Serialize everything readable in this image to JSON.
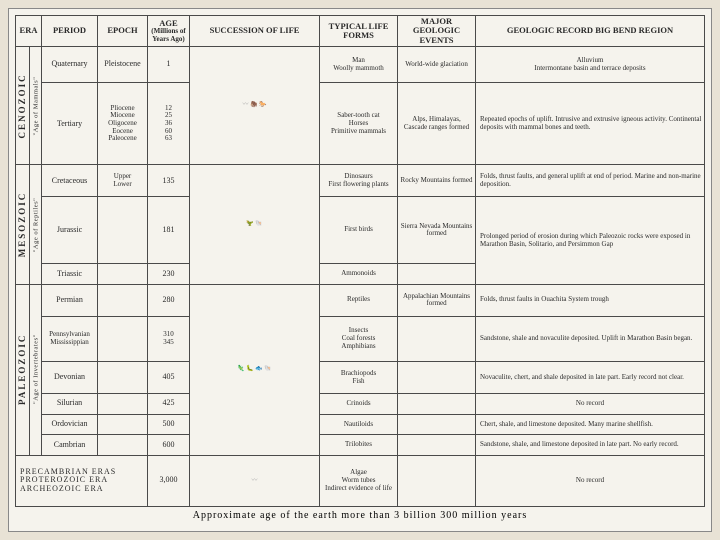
{
  "headers": {
    "era": "ERA",
    "period": "PERIOD",
    "epoch": "EPOCH",
    "age": "AGE",
    "age_sub": "(Millions of Years Ago)",
    "succession": "SUCCESSION OF LIFE",
    "forms": "TYPICAL LIFE FORMS",
    "events": "MAJOR GEOLOGIC EVENTS",
    "record": "GEOLOGIC RECORD BIG BEND REGION"
  },
  "eras": {
    "cenozoic": {
      "name": "CENOZOIC",
      "sub": "\"Age of Mammals\""
    },
    "mesozoic": {
      "name": "MESOZOIC",
      "sub": "\"Age of Reptiles\""
    },
    "paleozoic": {
      "name": "PALEOZOIC",
      "sub": "\"Age of Invertebrates\""
    }
  },
  "rows": {
    "quaternary": {
      "period": "Quaternary",
      "epoch": "Pleistocene",
      "age": "1",
      "forms": "Man\nWoolly mammoth",
      "events": "World-wide glaciation",
      "record": "Alluvium\nIntermontane basin and terrace deposits"
    },
    "tertiary": {
      "period": "Tertiary",
      "epoch": "Pliocene\nMiocene\nOligocene\nEocene\nPaleocene",
      "age": "12\n25\n36\n60\n63",
      "forms": "Saber-tooth cat\nHorses\nPrimitive mammals",
      "events": "Alps, Himalayas, Cascade ranges formed",
      "record": "Repeated epochs of uplift. Intrusive and extrusive igneous activity. Continental deposits with mammal bones and teeth."
    },
    "cretaceous": {
      "period": "Cretaceous",
      "epoch": "Upper\nLower",
      "age": "135",
      "forms": "Dinosaurs\nFirst flowering plants",
      "events": "Rocky Mountains formed",
      "record": "Folds, thrust faults, and general uplift at end of period. Marine and non-marine deposition."
    },
    "jurassic": {
      "period": "Jurassic",
      "epoch": "",
      "age": "181",
      "forms": "First birds",
      "events": "Sierra Nevada Mountains formed",
      "record_combined": "Prolonged period of erosion during which Paleozoic rocks were exposed in Marathon Basin, Solitario, and Persimmon Gap"
    },
    "triassic": {
      "period": "Triassic",
      "epoch": "",
      "age": "230",
      "forms": "Ammonoids",
      "events": ""
    },
    "permian": {
      "period": "Permian",
      "epoch": "",
      "age": "280",
      "forms": "Reptiles",
      "events": "Appalachian Mountains formed",
      "record": "Folds, thrust faults in Ouachita System trough"
    },
    "penn_miss": {
      "period": "Pennsylvanian\nMississippian",
      "epoch": "",
      "age": "310\n345",
      "forms": "Insects\nCoal forests\nAmphibians",
      "events": "",
      "record": "Sandstone, shale and novaculite deposited. Uplift in Marathon Basin began."
    },
    "devonian": {
      "period": "Devonian",
      "epoch": "",
      "age": "405",
      "forms": "Brachiopods\nFish",
      "events": "",
      "record": "Novaculite, chert, and shale deposited in late part. Early record not clear."
    },
    "silurian": {
      "period": "Silurian",
      "epoch": "",
      "age": "425",
      "forms": "Crinoids",
      "events": "",
      "record": "No record"
    },
    "ordovician": {
      "period": "Ordovician",
      "epoch": "",
      "age": "500",
      "forms": "Nautiloids",
      "events": "",
      "record": "Chert, shale, and limestone deposited. Many marine shellfish."
    },
    "cambrian": {
      "period": "Cambrian",
      "epoch": "",
      "age": "600",
      "forms": "Trilobites",
      "events": "",
      "record": "Sandstone, shale, and limestone deposited in late part. No early record."
    },
    "precambrian": {
      "label1": "PRECAMBRIAN ERAS",
      "label2": "PROTEROZOIC ERA",
      "label3": "ARCHEOZOIC ERA",
      "age": "3,000",
      "forms": "Algae\nWorm tubes\nIndirect evidence of life",
      "record": "No record"
    }
  },
  "footer": "Approximate age of the earth more than 3 billion 300 million years",
  "colors": {
    "page_bg": "#e8e2d5",
    "sheet_bg": "#f5f3ed",
    "border": "#4a4a4a",
    "text": "#2a2a2a"
  }
}
